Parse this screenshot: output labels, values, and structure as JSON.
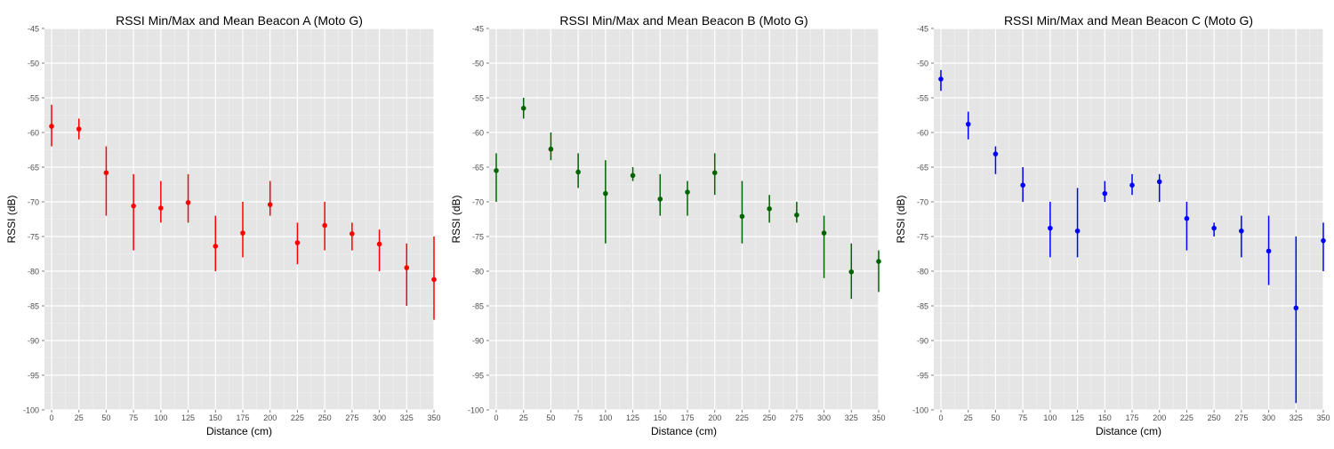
{
  "chart_data": [
    {
      "type": "scatter",
      "title": "RSSI Min/Max and Mean Beacon A (Moto G)",
      "xlabel": "Distance (cm)",
      "ylabel": "RSSI (dB)",
      "color": "#ff0000",
      "xlim": [
        0,
        350
      ],
      "ylim": [
        -100,
        -45
      ],
      "xticks": [
        0,
        25,
        50,
        75,
        100,
        125,
        150,
        175,
        200,
        225,
        250,
        275,
        300,
        325,
        350
      ],
      "yticks": [
        -100,
        -95,
        -90,
        -85,
        -80,
        -75,
        -70,
        -65,
        -60,
        -55,
        -50,
        -45
      ],
      "x": [
        0,
        25,
        50,
        75,
        100,
        125,
        150,
        175,
        200,
        225,
        250,
        275,
        300,
        325,
        350
      ],
      "mean": [
        -59.1,
        -59.5,
        -65.8,
        -70.6,
        -70.9,
        -70.1,
        -76.4,
        -74.5,
        -70.4,
        -75.9,
        -73.4,
        -74.6,
        -76.1,
        -79.5,
        -81.2
      ],
      "min": [
        -62,
        -61,
        -72,
        -77,
        -73,
        -73,
        -80,
        -78,
        -72,
        -79,
        -77,
        -77,
        -80,
        -85,
        -87
      ],
      "max": [
        -56,
        -58,
        -62,
        -66,
        -67,
        -66,
        -72,
        -70,
        -67,
        -73,
        -70,
        -73,
        -74,
        -76,
        -75
      ],
      "grid": true
    },
    {
      "type": "scatter",
      "title": "RSSI Min/Max and Mean Beacon B (Moto G)",
      "xlabel": "Distance (cm)",
      "ylabel": "RSSI (dB)",
      "color": "#006400",
      "xlim": [
        0,
        350
      ],
      "ylim": [
        -100,
        -45
      ],
      "xticks": [
        0,
        25,
        50,
        75,
        100,
        125,
        150,
        175,
        200,
        225,
        250,
        275,
        300,
        325,
        350
      ],
      "yticks": [
        -100,
        -95,
        -90,
        -85,
        -80,
        -75,
        -70,
        -65,
        -60,
        -55,
        -50,
        -45
      ],
      "x": [
        0,
        25,
        50,
        75,
        100,
        125,
        150,
        175,
        200,
        225,
        250,
        275,
        300,
        325,
        350
      ],
      "mean": [
        -65.5,
        -56.5,
        -62.4,
        -65.7,
        -68.8,
        -66.2,
        -69.6,
        -68.6,
        -65.8,
        -72.1,
        -71.0,
        -71.9,
        -74.5,
        -80.1,
        -78.6
      ],
      "min": [
        -70,
        -58,
        -64,
        -68,
        -76,
        -67,
        -72,
        -72,
        -69,
        -76,
        -73,
        -73,
        -81,
        -84,
        -83
      ],
      "max": [
        -63,
        -55,
        -60,
        -63,
        -64,
        -65,
        -66,
        -67,
        -63,
        -67,
        -69,
        -70,
        -72,
        -76,
        -77
      ],
      "grid": true
    },
    {
      "type": "scatter",
      "title": "RSSI Min/Max and Mean Beacon C (Moto G)",
      "xlabel": "Distance (cm)",
      "ylabel": "RSSI (dB)",
      "color": "#0000ff",
      "xlim": [
        0,
        350
      ],
      "ylim": [
        -100,
        -45
      ],
      "xticks": [
        0,
        25,
        50,
        75,
        100,
        125,
        150,
        175,
        200,
        225,
        250,
        275,
        300,
        325,
        350
      ],
      "yticks": [
        -100,
        -95,
        -90,
        -85,
        -80,
        -75,
        -70,
        -65,
        -60,
        -55,
        -50,
        -45
      ],
      "x": [
        0,
        25,
        50,
        75,
        100,
        125,
        150,
        175,
        200,
        225,
        250,
        275,
        300,
        325,
        350
      ],
      "mean": [
        -52.3,
        -58.8,
        -63.1,
        -67.6,
        -73.8,
        -74.2,
        -68.8,
        -67.6,
        -67.1,
        -72.4,
        -73.8,
        -74.2,
        -77.1,
        -85.3,
        -75.6
      ],
      "min": [
        -54,
        -61,
        -66,
        -70,
        -78,
        -78,
        -70,
        -69,
        -70,
        -77,
        -75,
        -78,
        -82,
        -99,
        -80
      ],
      "max": [
        -51,
        -57,
        -62,
        -65,
        -70,
        -68,
        -67,
        -66,
        -66,
        -70,
        -73,
        -72,
        -72,
        -75,
        -73
      ],
      "grid": true
    }
  ]
}
